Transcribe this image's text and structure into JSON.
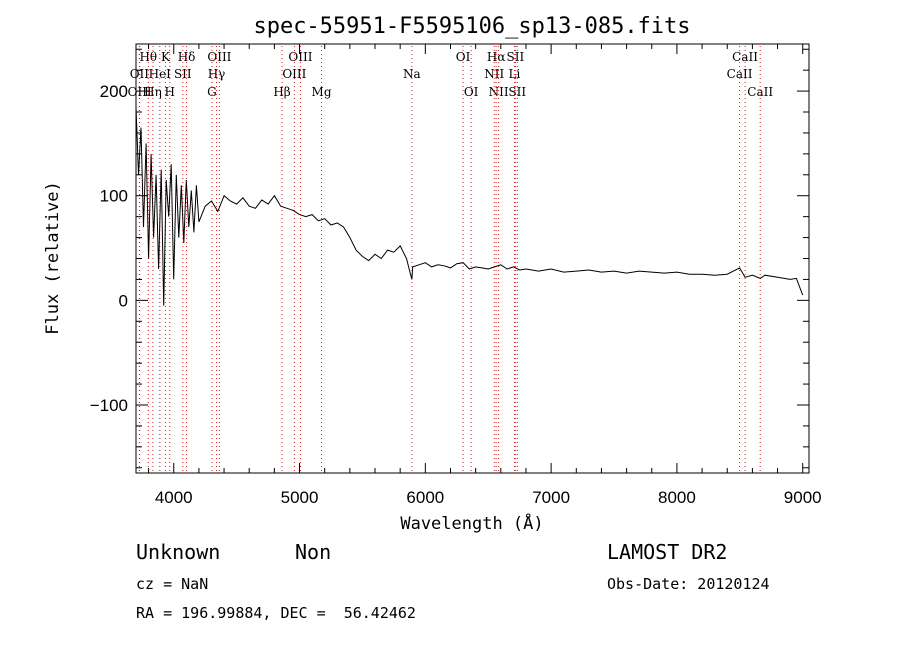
{
  "chart_data": {
    "type": "line",
    "title": "spec-55951-F5595106_sp13-085.fits",
    "xlabel": "Wavelength (Å)",
    "ylabel": "Flux (relative)",
    "xlim": [
      3700,
      9050
    ],
    "ylim": [
      -165,
      245
    ],
    "x_ticks": [
      4000,
      5000,
      6000,
      7000,
      8000,
      9000
    ],
    "y_ticks": [
      -100,
      0,
      100,
      200
    ],
    "grid": false,
    "series": [
      {
        "x": [
          3700,
          3720,
          3740,
          3760,
          3780,
          3800,
          3820,
          3840,
          3860,
          3880,
          3900,
          3920,
          3940,
          3960,
          3980,
          4000,
          4020,
          4040,
          4060,
          4080,
          4100,
          4120,
          4140,
          4160,
          4180,
          4200,
          4250,
          4300,
          4350,
          4400,
          4450,
          4500,
          4550,
          4600,
          4650,
          4700,
          4750,
          4800,
          4850,
          4900,
          4950,
          5000,
          5050,
          5100,
          5150,
          5200,
          5250,
          5300,
          5350,
          5400,
          5450,
          5500,
          5550,
          5600,
          5650,
          5700,
          5750,
          5800,
          5850,
          5880,
          5893,
          5900,
          5950,
          6000,
          6050,
          6100,
          6150,
          6200,
          6250,
          6300,
          6350,
          6400,
          6450,
          6500,
          6550,
          6600,
          6650,
          6700,
          6750,
          6800,
          6900,
          7000,
          7100,
          7200,
          7300,
          7400,
          7500,
          7600,
          7700,
          7800,
          7900,
          8000,
          8100,
          8200,
          8300,
          8400,
          8498,
          8542,
          8600,
          8662,
          8700,
          8800,
          8900,
          8950,
          9000
        ],
        "y": [
          185,
          120,
          165,
          70,
          150,
          40,
          140,
          60,
          120,
          30,
          125,
          -5,
          115,
          80,
          130,
          20,
          120,
          60,
          110,
          55,
          115,
          70,
          105,
          65,
          110,
          75,
          90,
          95,
          85,
          100,
          95,
          92,
          98,
          90,
          88,
          96,
          92,
          100,
          90,
          88,
          86,
          82,
          80,
          82,
          76,
          78,
          72,
          74,
          70,
          60,
          48,
          42,
          38,
          44,
          40,
          48,
          46,
          52,
          40,
          26,
          20,
          32,
          34,
          36,
          32,
          34,
          33,
          31,
          35,
          36,
          30,
          32,
          31,
          30,
          32,
          34,
          30,
          32,
          29,
          30,
          28,
          30,
          27,
          28,
          29,
          27,
          28,
          26,
          28,
          27,
          26,
          27,
          25,
          25,
          24,
          25,
          31,
          22,
          24,
          21,
          24,
          22,
          20,
          21,
          5
        ]
      }
    ],
    "spectral_lines": [
      {
        "label": "Hθ",
        "wl": 3798,
        "row": 1
      },
      {
        "label": "OII",
        "wl": 3727,
        "row": 2
      },
      {
        "label": "OIII",
        "wl": 3729,
        "row": 3
      },
      {
        "label": "K",
        "wl": 3934,
        "row": 1
      },
      {
        "label": "Hδ",
        "wl": 4102,
        "row": 1
      },
      {
        "label": "HeI",
        "wl": 3889,
        "row": 2
      },
      {
        "label": "SII",
        "wl": 4072,
        "row": 2
      },
      {
        "label": "Hη",
        "wl": 3835,
        "row": 3
      },
      {
        "label": "H",
        "wl": 3968,
        "row": 3
      },
      {
        "label": "OIII",
        "wl": 4363,
        "row": 1
      },
      {
        "label": "Hγ",
        "wl": 4340,
        "row": 2
      },
      {
        "label": "G",
        "wl": 4304,
        "row": 3
      },
      {
        "label": "OIII",
        "wl": 5007,
        "row": 1
      },
      {
        "label": "OIII",
        "wl": 4959,
        "row": 2
      },
      {
        "label": "Hβ",
        "wl": 4861,
        "row": 3
      },
      {
        "label": "Mg",
        "wl": 5175,
        "row": 3
      },
      {
        "label": "Na",
        "wl": 5893,
        "row": 2
      },
      {
        "label": "OI",
        "wl": 6300,
        "row": 1
      },
      {
        "label": "OI",
        "wl": 6364,
        "row": 3
      },
      {
        "label": "Hα",
        "wl": 6563,
        "row": 1
      },
      {
        "label": "SII",
        "wl": 6716,
        "row": 1
      },
      {
        "label": "NII",
        "wl": 6548,
        "row": 2
      },
      {
        "label": "Li",
        "wl": 6708,
        "row": 2
      },
      {
        "label": "NII",
        "wl": 6583,
        "row": 3
      },
      {
        "label": "SII",
        "wl": 6731,
        "row": 3
      },
      {
        "label": "CaII",
        "wl": 8542,
        "row": 1
      },
      {
        "label": "CaII",
        "wl": 8498,
        "row": 2
      },
      {
        "label": "CaII",
        "wl": 8662,
        "row": 3
      }
    ]
  },
  "info": {
    "object_class": "Unknown",
    "subclass": "Non",
    "survey": "LAMOST DR2",
    "cz": "cz = NaN",
    "obs_date": "Obs-Date: 20120124",
    "coords": "RA = 196.99884, DEC =  56.42462"
  },
  "colors": {
    "ink": "#000000",
    "marker": "#cc2222"
  }
}
